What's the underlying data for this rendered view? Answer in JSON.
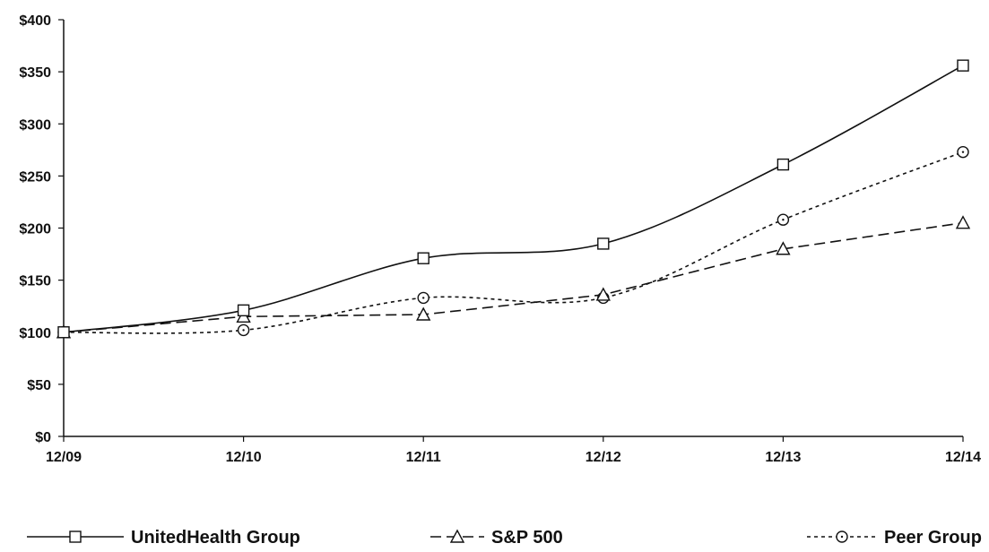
{
  "chart_data": {
    "type": "line",
    "title": "",
    "xlabel": "",
    "ylabel": "",
    "categories": [
      "12/09",
      "12/10",
      "12/11",
      "12/12",
      "12/13",
      "12/14"
    ],
    "ylim": [
      0,
      400
    ],
    "ytick_values": [
      0,
      50,
      100,
      150,
      200,
      250,
      300,
      350,
      400
    ],
    "ytick_labels": [
      "$0",
      "$50",
      "$100",
      "$150",
      "$200",
      "$250",
      "$300",
      "$350",
      "$400"
    ],
    "grid": false,
    "legend_position": "bottom",
    "series": [
      {
        "name": "UnitedHealth Group",
        "values": [
          100,
          121,
          171,
          185,
          261,
          356
        ],
        "marker": "square",
        "line_style": "solid",
        "smooth": true
      },
      {
        "name": "S&P 500",
        "values": [
          100,
          115,
          117,
          136,
          180,
          205
        ],
        "marker": "triangle",
        "line_style": "dashed",
        "smooth": false
      },
      {
        "name": "Peer Group",
        "values": [
          100,
          102,
          133,
          133,
          208,
          273
        ],
        "marker": "circle",
        "line_style": "dotted",
        "smooth": true
      }
    ],
    "colors": {
      "line": "#111111",
      "background": "#ffffff"
    }
  }
}
